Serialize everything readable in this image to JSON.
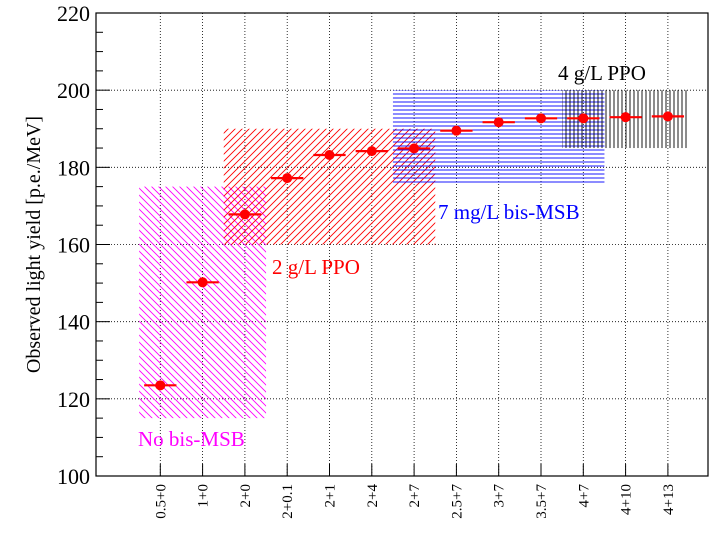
{
  "chart_data": {
    "type": "scatter",
    "ylabel": "Observed light yield [p.e./MeV]",
    "ylim": [
      100,
      220
    ],
    "y_ticks": [
      100,
      120,
      140,
      160,
      180,
      200,
      220
    ],
    "grid": true,
    "categories": [
      "0.5+0",
      "1+0",
      "2+0",
      "2+0.1",
      "2+1",
      "2+4",
      "2+7",
      "2.5+7",
      "3+7",
      "3.5+7",
      "4+7",
      "4+10",
      "4+13"
    ],
    "series": [
      {
        "values": [
          123.5,
          150.2,
          167.8,
          177.2,
          183.2,
          184.2,
          184.9,
          189.5,
          191.7,
          192.7,
          192.7,
          193.0,
          193.2
        ],
        "color": "#ff0000"
      }
    ],
    "bands": [
      {
        "label": "No bis-MSB",
        "color": "#ff00ff",
        "from_category": "0.5+0",
        "to_category": "2+0",
        "y_range": [
          115,
          175
        ],
        "hatch": "diagonal-descending"
      },
      {
        "label": "2 g/L PPO",
        "color": "#ff0000",
        "from_category": "2+0",
        "to_category": "2+7",
        "y_range": [
          160,
          190
        ],
        "hatch": "diagonal-ascending"
      },
      {
        "label": "7 mg/L bis-MSB",
        "color": "#0000ff",
        "from_category": "2+7",
        "to_category": "4+7",
        "y_range": [
          176,
          200
        ],
        "hatch": "horizontal"
      },
      {
        "label": "4 g/L PPO",
        "color": "#000000",
        "from_category": "4+7",
        "to_category": "4+13",
        "y_range": [
          185,
          200
        ],
        "hatch": "vertical"
      }
    ]
  }
}
